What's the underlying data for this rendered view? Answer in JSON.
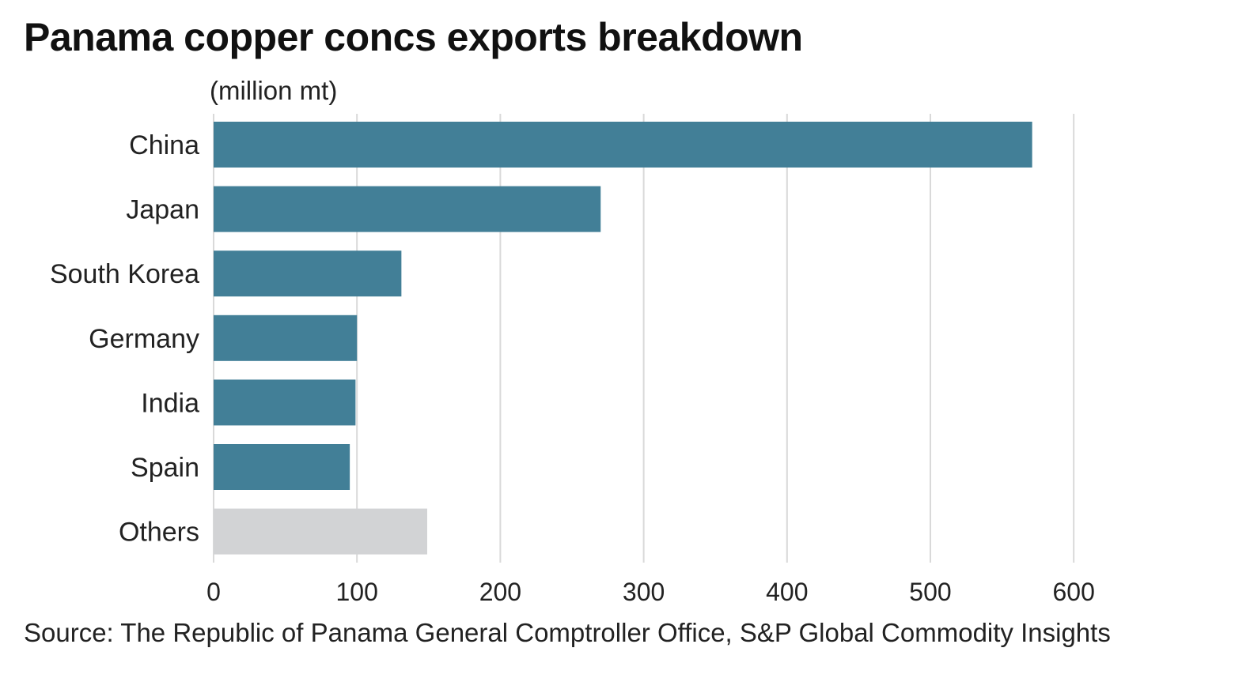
{
  "chart_data": {
    "type": "bar",
    "orientation": "horizontal",
    "title": "Panama copper concs exports breakdown",
    "ylabel": "(million mt)",
    "xlabel": "",
    "categories": [
      "China",
      "Japan",
      "South Korea",
      "Germany",
      "India",
      "Spain",
      "Others"
    ],
    "values": [
      571,
      270,
      131,
      100,
      99,
      95,
      149
    ],
    "xlim": [
      0,
      660
    ],
    "xticks": [
      0,
      100,
      200,
      300,
      400,
      500,
      600
    ],
    "grid": true,
    "colors": [
      "#427f97",
      "#427f97",
      "#427f97",
      "#427f97",
      "#427f97",
      "#427f97",
      "#d2d3d5"
    ],
    "source": "Source: The Republic of Panama General Comptroller Office, S&P Global Commodity Insights"
  }
}
